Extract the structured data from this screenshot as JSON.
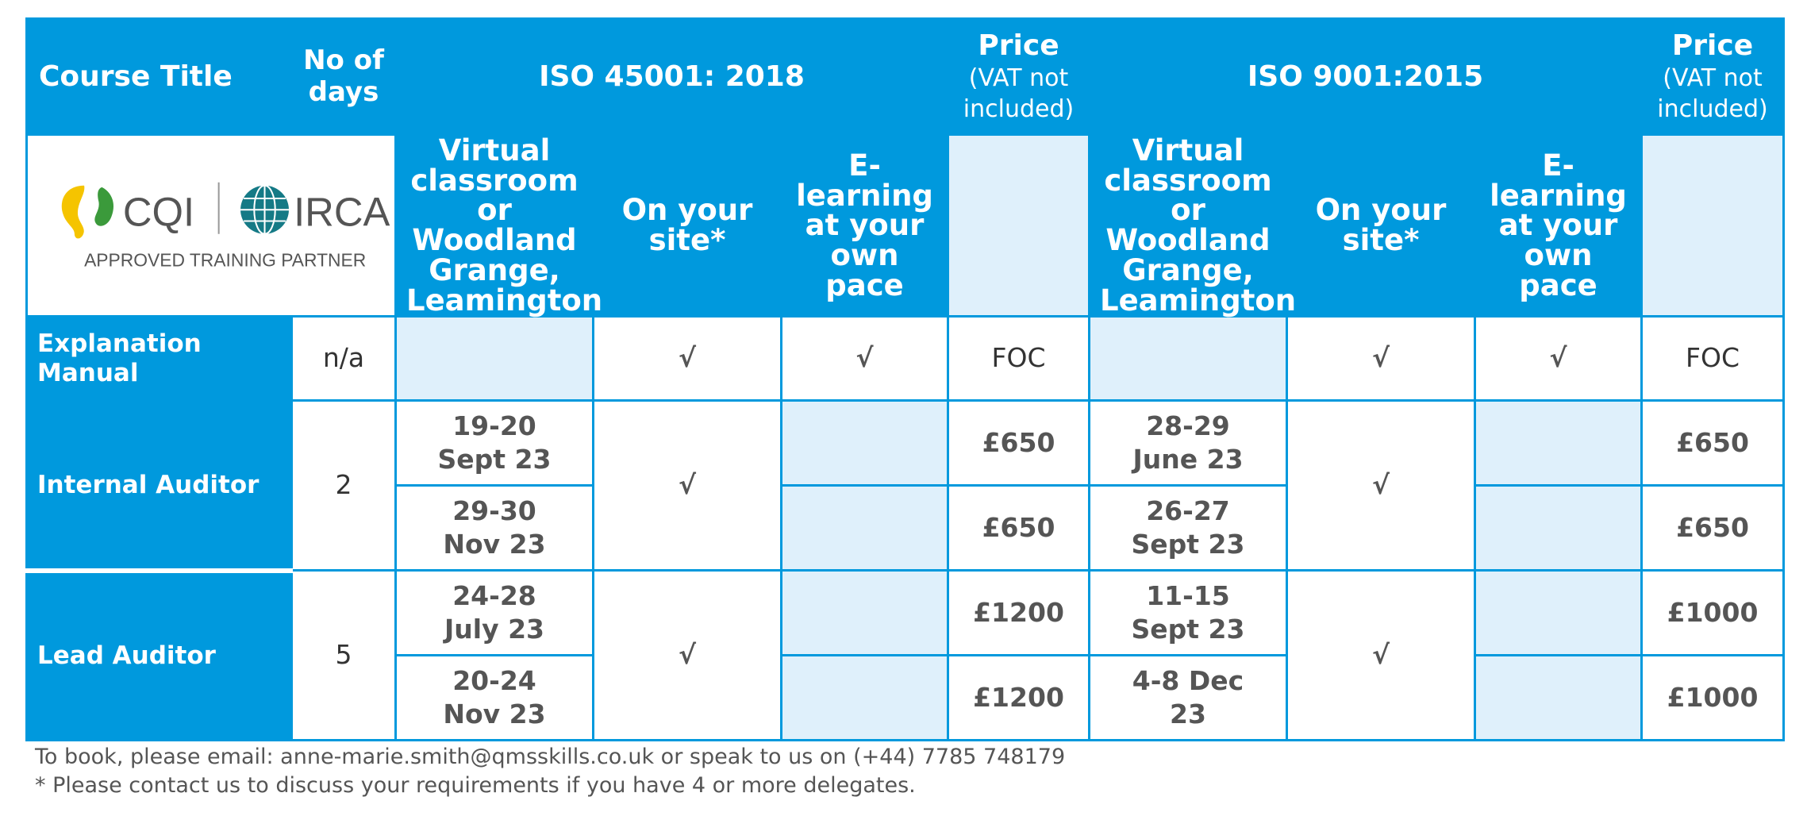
{
  "header": {
    "course_title": "Course Title",
    "no_of_days": "No of days",
    "iso_a": "ISO 45001: 2018",
    "iso_b": "ISO 9001:2015",
    "price": "Price",
    "price_note": "(VAT not included)"
  },
  "logo": {
    "cqi": "CQI",
    "irca": "IRCA",
    "tagline": "APPROVED TRAINING PARTNER"
  },
  "subheaders": {
    "virtual": "Virtual classroom or Woodland Grange, Leamington",
    "onsite": "On your site*",
    "elearning": "E-learning at your own pace"
  },
  "tick": "√",
  "rows": {
    "explanation": {
      "title": "Explanation Manual",
      "days": "n/a",
      "price_a": "FOC",
      "price_b": "FOC"
    },
    "internal": {
      "title": "Internal Auditor",
      "days": "2",
      "dates_a": [
        "19-20 Sept 23",
        "29-30 Nov 23"
      ],
      "prices_a": [
        "£650",
        "£650"
      ],
      "dates_b": [
        "28-29 June 23",
        "26-27 Sept 23"
      ],
      "prices_b": [
        "£650",
        "£650"
      ]
    },
    "lead": {
      "title": "Lead Auditor",
      "days": "5",
      "dates_a": [
        "24-28 July 23",
        "20-24 Nov 23"
      ],
      "prices_a": [
        "£1200",
        "£1200"
      ],
      "dates_b": [
        "11-15 Sept 23",
        "4-8 Dec 23"
      ],
      "prices_b": [
        "£1000",
        "£1000"
      ]
    }
  },
  "footer": {
    "line1": "To book, please email: anne-marie.smith@qmsskills.co.uk or speak to us on (+44) 7785 748179",
    "line2": "* Please contact us to discuss your requirements if you have 4 or more delegates."
  },
  "colors": {
    "brand_blue": "#0099dd",
    "empty_fill": "#dff0fb",
    "cqi_yellow": "#f5c400",
    "cqi_green": "#3b9a3b",
    "irca_teal": "#157a86"
  }
}
